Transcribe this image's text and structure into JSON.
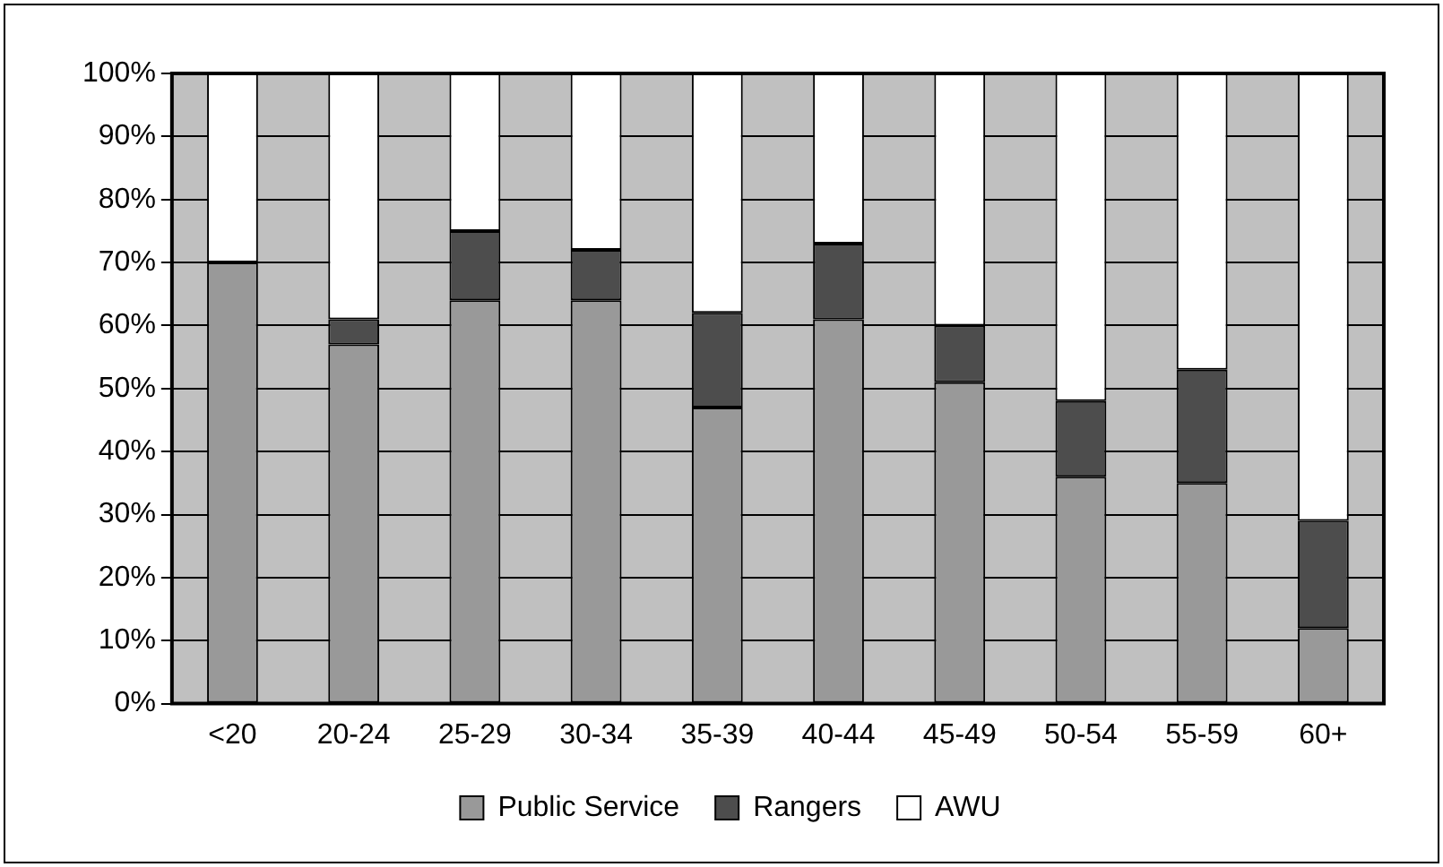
{
  "chart_data": {
    "type": "bar",
    "stacked": true,
    "categories": [
      "<20",
      "20-24",
      "25-29",
      "30-34",
      "35-39",
      "40-44",
      "45-49",
      "50-54",
      "55-59",
      "60+"
    ],
    "series": [
      {
        "name": "Public Service",
        "color": "#999999",
        "values": [
          70,
          57,
          64,
          64,
          47,
          61,
          51,
          36,
          35,
          12
        ]
      },
      {
        "name": "Rangers",
        "color": "#4d4d4d",
        "values": [
          0,
          4,
          11,
          8,
          15,
          12,
          9,
          12,
          18,
          17
        ]
      },
      {
        "name": "AWU",
        "color": "#ffffff",
        "values": [
          30,
          39,
          25,
          28,
          38,
          27,
          40,
          52,
          47,
          71
        ]
      }
    ],
    "ylim": [
      0,
      100
    ],
    "yticks": [
      {
        "value": 0,
        "label": "0%"
      },
      {
        "value": 10,
        "label": "10%"
      },
      {
        "value": 20,
        "label": "20%"
      },
      {
        "value": 30,
        "label": "30%"
      },
      {
        "value": 40,
        "label": "40%"
      },
      {
        "value": 50,
        "label": "50%"
      },
      {
        "value": 60,
        "label": "60%"
      },
      {
        "value": 70,
        "label": "70%"
      },
      {
        "value": 80,
        "label": "80%"
      },
      {
        "value": 90,
        "label": "90%"
      },
      {
        "value": 100,
        "label": "100%"
      }
    ],
    "grid": "y",
    "legend": "bottom"
  }
}
